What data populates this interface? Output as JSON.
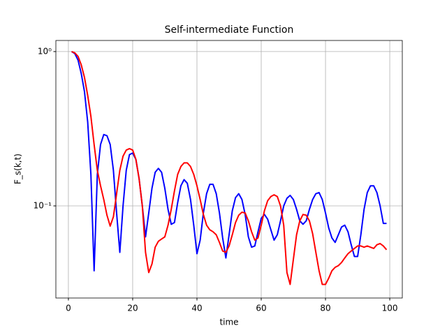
{
  "chart_data": {
    "type": "line",
    "title": "Self-intermediate Function",
    "xlabel": "time",
    "ylabel": "F_s(k,t)",
    "log_y": true,
    "grid": true,
    "xlim": [
      -3.9,
      103.9
    ],
    "xticks": [
      0,
      20,
      40,
      60,
      80,
      100
    ],
    "ylim": [
      0.0253,
      1.18
    ],
    "yticks": [
      {
        "value": 0.1,
        "label": "10⁻¹"
      },
      {
        "value": 1,
        "label": "10⁰"
      }
    ],
    "x": [
      1,
      2,
      3,
      4,
      5,
      6,
      7,
      8,
      9,
      10,
      11,
      12,
      13,
      14,
      15,
      16,
      17,
      18,
      19,
      20,
      21,
      22,
      23,
      24,
      25,
      26,
      27,
      28,
      29,
      30,
      31,
      32,
      33,
      34,
      35,
      36,
      37,
      38,
      39,
      40,
      41,
      42,
      43,
      44,
      45,
      46,
      47,
      48,
      49,
      50,
      51,
      52,
      53,
      54,
      55,
      56,
      57,
      58,
      59,
      60,
      61,
      62,
      63,
      64,
      65,
      66,
      67,
      68,
      69,
      70,
      71,
      72,
      73,
      74,
      75,
      76,
      77,
      78,
      79,
      80,
      81,
      82,
      83,
      84,
      85,
      86,
      87,
      88,
      89,
      90,
      91,
      92,
      93,
      94,
      95,
      96,
      97,
      98,
      99
    ],
    "series": [
      {
        "color": "#0000ff",
        "values": [
          1.0,
          0.97,
          0.88,
          0.72,
          0.55,
          0.35,
          0.16,
          0.038,
          0.16,
          0.25,
          0.29,
          0.285,
          0.25,
          0.17,
          0.09,
          0.05,
          0.1,
          0.17,
          0.215,
          0.22,
          0.2,
          0.15,
          0.1,
          0.063,
          0.09,
          0.13,
          0.165,
          0.175,
          0.165,
          0.13,
          0.095,
          0.076,
          0.078,
          0.105,
          0.135,
          0.148,
          0.14,
          0.11,
          0.075,
          0.049,
          0.06,
          0.09,
          0.12,
          0.138,
          0.138,
          0.12,
          0.09,
          0.062,
          0.046,
          0.065,
          0.093,
          0.113,
          0.12,
          0.11,
          0.088,
          0.063,
          0.054,
          0.055,
          0.068,
          0.083,
          0.088,
          0.082,
          0.07,
          0.06,
          0.065,
          0.08,
          0.1,
          0.112,
          0.117,
          0.11,
          0.095,
          0.08,
          0.076,
          0.08,
          0.095,
          0.11,
          0.12,
          0.122,
          0.11,
          0.09,
          0.072,
          0.062,
          0.058,
          0.065,
          0.073,
          0.075,
          0.068,
          0.056,
          0.047,
          0.047,
          0.065,
          0.095,
          0.122,
          0.135,
          0.135,
          0.122,
          0.1,
          0.077,
          0.077
        ]
      },
      {
        "color": "#ff0000",
        "values": [
          1.0,
          0.98,
          0.93,
          0.82,
          0.68,
          0.52,
          0.38,
          0.25,
          0.17,
          0.135,
          0.11,
          0.087,
          0.074,
          0.085,
          0.12,
          0.17,
          0.21,
          0.23,
          0.235,
          0.23,
          0.2,
          0.15,
          0.1,
          0.05,
          0.037,
          0.042,
          0.054,
          0.059,
          0.061,
          0.063,
          0.075,
          0.095,
          0.125,
          0.16,
          0.18,
          0.19,
          0.19,
          0.18,
          0.16,
          0.135,
          0.11,
          0.088,
          0.075,
          0.07,
          0.068,
          0.065,
          0.058,
          0.051,
          0.05,
          0.055,
          0.065,
          0.078,
          0.087,
          0.091,
          0.09,
          0.08,
          0.068,
          0.06,
          0.062,
          0.075,
          0.093,
          0.108,
          0.115,
          0.118,
          0.115,
          0.1,
          0.075,
          0.037,
          0.031,
          0.045,
          0.065,
          0.08,
          0.088,
          0.087,
          0.08,
          0.066,
          0.05,
          0.038,
          0.031,
          0.031,
          0.034,
          0.038,
          0.04,
          0.041,
          0.043,
          0.046,
          0.049,
          0.051,
          0.053,
          0.055,
          0.055,
          0.054,
          0.055,
          0.054,
          0.053,
          0.056,
          0.057,
          0.055,
          0.052
        ]
      }
    ]
  }
}
